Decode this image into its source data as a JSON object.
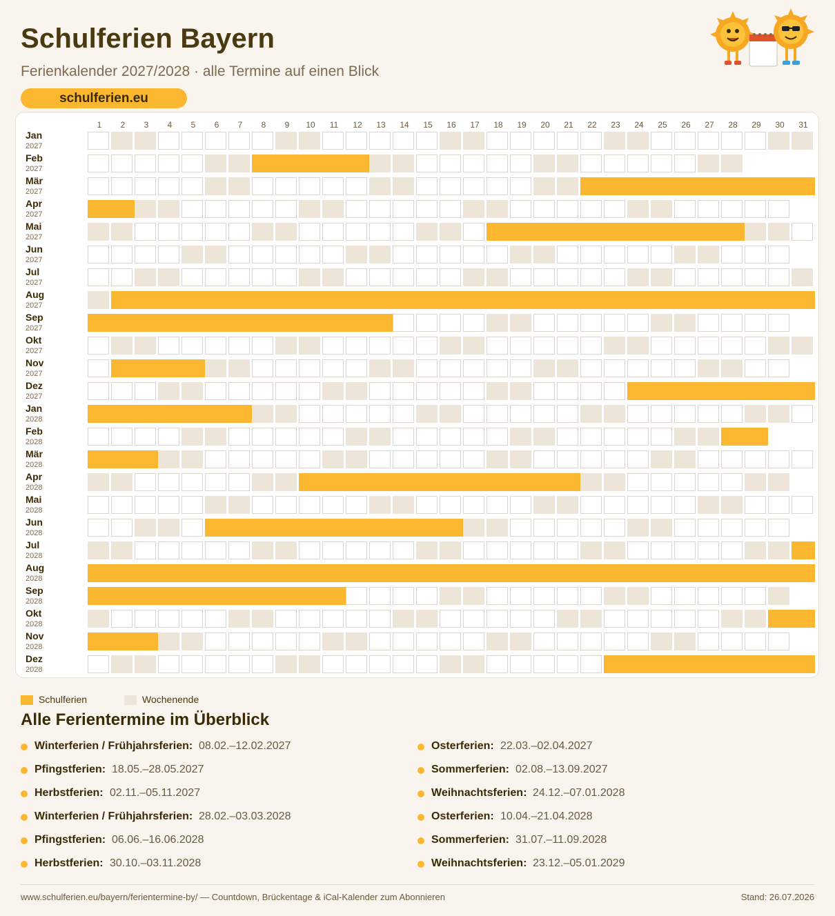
{
  "header": {
    "title": "Schulferien Bayern",
    "subtitle": "Ferienkalender 2027/2028 · alle Termine auf einen Blick",
    "site": "schulferien.eu"
  },
  "calendar": {
    "days": [
      "1",
      "2",
      "3",
      "4",
      "5",
      "6",
      "7",
      "8",
      "9",
      "10",
      "11",
      "12",
      "13",
      "14",
      "15",
      "16",
      "17",
      "18",
      "19",
      "20",
      "21",
      "22",
      "23",
      "24",
      "25",
      "26",
      "27",
      "28",
      "29",
      "30",
      "31"
    ],
    "months": [
      {
        "name": "Jan",
        "year": "2027",
        "y": 2027,
        "m": 1
      },
      {
        "name": "Feb",
        "year": "2027",
        "y": 2027,
        "m": 2
      },
      {
        "name": "Mär",
        "year": "2027",
        "y": 2027,
        "m": 3
      },
      {
        "name": "Apr",
        "year": "2027",
        "y": 2027,
        "m": 4
      },
      {
        "name": "Mai",
        "year": "2027",
        "y": 2027,
        "m": 5
      },
      {
        "name": "Jun",
        "year": "2027",
        "y": 2027,
        "m": 6
      },
      {
        "name": "Jul",
        "year": "2027",
        "y": 2027,
        "m": 7
      },
      {
        "name": "Aug",
        "year": "2027",
        "y": 2027,
        "m": 8
      },
      {
        "name": "Sep",
        "year": "2027",
        "y": 2027,
        "m": 9
      },
      {
        "name": "Okt",
        "year": "2027",
        "y": 2027,
        "m": 10
      },
      {
        "name": "Nov",
        "year": "2027",
        "y": 2027,
        "m": 11
      },
      {
        "name": "Dez",
        "year": "2027",
        "y": 2027,
        "m": 12
      },
      {
        "name": "Jan",
        "year": "2028",
        "y": 2028,
        "m": 1
      },
      {
        "name": "Feb",
        "year": "2028",
        "y": 2028,
        "m": 2
      },
      {
        "name": "Mär",
        "year": "2028",
        "y": 2028,
        "m": 3
      },
      {
        "name": "Apr",
        "year": "2028",
        "y": 2028,
        "m": 4
      },
      {
        "name": "Mai",
        "year": "2028",
        "y": 2028,
        "m": 5
      },
      {
        "name": "Jun",
        "year": "2028",
        "y": 2028,
        "m": 6
      },
      {
        "name": "Jul",
        "year": "2028",
        "y": 2028,
        "m": 7
      },
      {
        "name": "Aug",
        "year": "2028",
        "y": 2028,
        "m": 8
      },
      {
        "name": "Sep",
        "year": "2028",
        "y": 2028,
        "m": 9
      },
      {
        "name": "Okt",
        "year": "2028",
        "y": 2028,
        "m": 10
      },
      {
        "name": "Nov",
        "year": "2028",
        "y": 2028,
        "m": 11
      },
      {
        "name": "Dez",
        "year": "2028",
        "y": 2028,
        "m": 12
      }
    ]
  },
  "legend": {
    "holiday_label": "Schulferien",
    "weekend_label": "Wochenende",
    "holiday_color": "#fbb730",
    "weekend_color": "#ede5d8"
  },
  "overview": {
    "title": "Alle Ferientermine im Überblick",
    "left": [
      {
        "name": "Winterferien / Frühjahrsferien:",
        "dates": "08.02.–12.02.2027"
      },
      {
        "name": "Pfingstferien:",
        "dates": "18.05.–28.05.2027"
      },
      {
        "name": "Herbstferien:",
        "dates": "02.11.–05.11.2027"
      },
      {
        "name": "Winterferien / Frühjahrsferien:",
        "dates": "28.02.–03.03.2028"
      },
      {
        "name": "Pfingstferien:",
        "dates": "06.06.–16.06.2028"
      },
      {
        "name": "Herbstferien:",
        "dates": "30.10.–03.11.2028"
      }
    ],
    "right": [
      {
        "name": "Osterferien:",
        "dates": "22.03.–02.04.2027"
      },
      {
        "name": "Sommerferien:",
        "dates": "02.08.–13.09.2027"
      },
      {
        "name": "Weihnachtsferien:",
        "dates": "24.12.–07.01.2028"
      },
      {
        "name": "Osterferien:",
        "dates": "10.04.–21.04.2028"
      },
      {
        "name": "Sommerferien:",
        "dates": "31.07.–11.09.2028"
      },
      {
        "name": "Weihnachtsferien:",
        "dates": "23.12.–05.01.2029"
      }
    ]
  },
  "footer": {
    "left": "www.schulferien.eu/bayern/ferientermine-by/ — Countdown, Brückentage & iCal-Kalender zum Abonnieren",
    "right": "Stand: 26.07.2026"
  }
}
